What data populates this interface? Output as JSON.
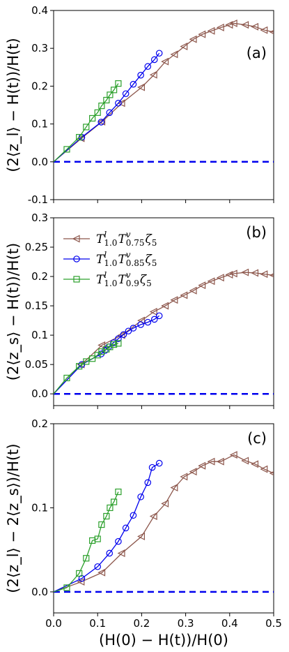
{
  "chart_data": [
    {
      "type": "line",
      "panel_label": "(a)",
      "ylabel": "(2⟨z_l⟩ − H(t))/H(t)",
      "xlim": [
        0,
        0.5
      ],
      "ylim": [
        -0.1,
        0.4
      ],
      "yticks": [
        "-0.1",
        "0.0",
        "0.1",
        "0.2",
        "0.3",
        "0.4"
      ],
      "ytick_values": [
        -0.1,
        0.0,
        0.1,
        0.2,
        0.3,
        0.4
      ],
      "reference_line": {
        "y": 0.0,
        "style": "dashed",
        "color": "#0000ee"
      },
      "series": [
        {
          "marker": "triangle-left",
          "color": "#8c564b",
          "x": [
            0.0,
            0.063,
            0.11,
            0.155,
            0.2,
            0.228,
            0.254,
            0.275,
            0.297,
            0.318,
            0.338,
            0.359,
            0.38,
            0.4,
            0.41,
            0.436,
            0.458,
            0.479,
            0.5
          ],
          "y": [
            0.0,
            0.062,
            0.106,
            0.155,
            0.197,
            0.23,
            0.265,
            0.284,
            0.305,
            0.324,
            0.337,
            0.346,
            0.355,
            0.362,
            0.366,
            0.362,
            0.357,
            0.348,
            0.343
          ]
        },
        {
          "marker": "circle",
          "color": "#0000ee",
          "x": [
            0.0,
            0.064,
            0.108,
            0.127,
            0.147,
            0.164,
            0.181,
            0.198,
            0.214,
            0.229,
            0.24
          ],
          "y": [
            0.0,
            0.065,
            0.105,
            0.13,
            0.155,
            0.18,
            0.205,
            0.229,
            0.252,
            0.27,
            0.287
          ]
        },
        {
          "marker": "square",
          "color": "#2ca02c",
          "x": [
            0.0,
            0.03,
            0.058,
            0.074,
            0.088,
            0.1,
            0.109,
            0.12,
            0.128,
            0.137,
            0.147
          ],
          "y": [
            0.0,
            0.033,
            0.065,
            0.092,
            0.115,
            0.13,
            0.148,
            0.163,
            0.177,
            0.19,
            0.207
          ]
        }
      ]
    },
    {
      "type": "line",
      "panel_label": "(b)",
      "ylabel": "(2⟨z_s⟩ − H(t))/H(t)",
      "xlim": [
        0,
        0.5
      ],
      "ylim": [
        -0.02,
        0.3
      ],
      "yticks": [
        "0.0",
        "0.05",
        "0.1",
        "0.15",
        "0.2",
        "0.25",
        "0.3"
      ],
      "ytick_values": [
        0.0,
        0.05,
        0.1,
        0.15,
        0.2,
        0.25,
        0.3
      ],
      "reference_line": {
        "y": 0.0,
        "style": "dashed",
        "color": "#0000ee"
      },
      "legend": {
        "placement": "upper-left",
        "entries": [
          {
            "label_main": "T",
            "sup1": "l",
            "sub1": "1.0",
            "mid": "T",
            "sup2": "v",
            "sub2": "0.75",
            "tail": "ζ",
            "sub3": "5",
            "marker": "triangle-left",
            "color": "#8c564b"
          },
          {
            "label_main": "T",
            "sup1": "l",
            "sub1": "1.0",
            "mid": "T",
            "sup2": "v",
            "sub2": "0.85",
            "tail": "ζ",
            "sub3": "5",
            "marker": "circle",
            "color": "#0000ee"
          },
          {
            "label_main": "T",
            "sup1": "l",
            "sub1": "1.0",
            "mid": "T",
            "sup2": "v",
            "sub2": "0.9",
            "tail": "ζ",
            "sub3": "5",
            "marker": "square",
            "color": "#2ca02c"
          }
        ]
      },
      "series": [
        {
          "marker": "triangle-left",
          "color": "#8c564b",
          "x": [
            0.0,
            0.063,
            0.11,
            0.155,
            0.2,
            0.228,
            0.254,
            0.275,
            0.297,
            0.318,
            0.338,
            0.359,
            0.38,
            0.4,
            0.41,
            0.436,
            0.458,
            0.479,
            0.5
          ],
          "y": [
            0.0,
            0.05,
            0.083,
            0.1,
            0.125,
            0.14,
            0.15,
            0.16,
            0.168,
            0.176,
            0.185,
            0.192,
            0.198,
            0.203,
            0.205,
            0.207,
            0.206,
            0.204,
            0.202
          ]
        },
        {
          "marker": "circle",
          "color": "#0000ee",
          "x": [
            0.0,
            0.064,
            0.108,
            0.117,
            0.125,
            0.136,
            0.147,
            0.159,
            0.17,
            0.181,
            0.198,
            0.214,
            0.229,
            0.24
          ],
          "y": [
            0.0,
            0.05,
            0.068,
            0.074,
            0.08,
            0.087,
            0.094,
            0.101,
            0.107,
            0.112,
            0.118,
            0.122,
            0.127,
            0.133
          ]
        },
        {
          "marker": "square",
          "color": "#2ca02c",
          "x": [
            0.0,
            0.03,
            0.058,
            0.074,
            0.088,
            0.1,
            0.109,
            0.12,
            0.128,
            0.137,
            0.147
          ],
          "y": [
            0.0,
            0.027,
            0.047,
            0.055,
            0.06,
            0.066,
            0.072,
            0.076,
            0.08,
            0.084,
            0.086
          ]
        }
      ]
    },
    {
      "type": "line",
      "panel_label": "(c)",
      "xlabel": "(H(0) − H(t))/H(0)",
      "ylabel": "(2⟨z_l⟩ − 2⟨z_s⟩)/H(t)",
      "xlim": [
        0,
        0.5
      ],
      "ylim": [
        -0.025,
        0.2
      ],
      "xticks": [
        "0.0",
        "0.1",
        "0.2",
        "0.3",
        "0.4",
        "0.5"
      ],
      "xtick_values": [
        0.0,
        0.1,
        0.2,
        0.3,
        0.4,
        0.5
      ],
      "yticks": [
        "0.0",
        "0.1",
        "0.2"
      ],
      "ytick_values": [
        0.0,
        0.1,
        0.2
      ],
      "reference_line": {
        "y": 0.0,
        "style": "dashed",
        "color": "#0000ee"
      },
      "series": [
        {
          "marker": "triangle-left",
          "color": "#8c564b",
          "x": [
            0.0,
            0.063,
            0.11,
            0.155,
            0.2,
            0.228,
            0.254,
            0.275,
            0.297,
            0.318,
            0.338,
            0.359,
            0.38,
            0.41,
            0.436,
            0.458,
            0.479,
            0.5
          ],
          "y": [
            0.0,
            0.012,
            0.023,
            0.046,
            0.066,
            0.09,
            0.105,
            0.124,
            0.137,
            0.143,
            0.15,
            0.155,
            0.155,
            0.163,
            0.156,
            0.152,
            0.146,
            0.141
          ]
        },
        {
          "marker": "circle",
          "color": "#0000ee",
          "x": [
            0.0,
            0.064,
            0.1,
            0.127,
            0.147,
            0.164,
            0.181,
            0.198,
            0.214,
            0.224,
            0.24
          ],
          "y": [
            0.0,
            0.016,
            0.03,
            0.046,
            0.06,
            0.076,
            0.091,
            0.113,
            0.13,
            0.148,
            0.153
          ]
        },
        {
          "marker": "square",
          "color": "#2ca02c",
          "x": [
            0.0,
            0.03,
            0.058,
            0.074,
            0.088,
            0.1,
            0.109,
            0.12,
            0.128,
            0.137,
            0.147
          ],
          "y": [
            0.0,
            0.005,
            0.022,
            0.04,
            0.061,
            0.063,
            0.08,
            0.09,
            0.1,
            0.107,
            0.119
          ]
        }
      ]
    }
  ]
}
